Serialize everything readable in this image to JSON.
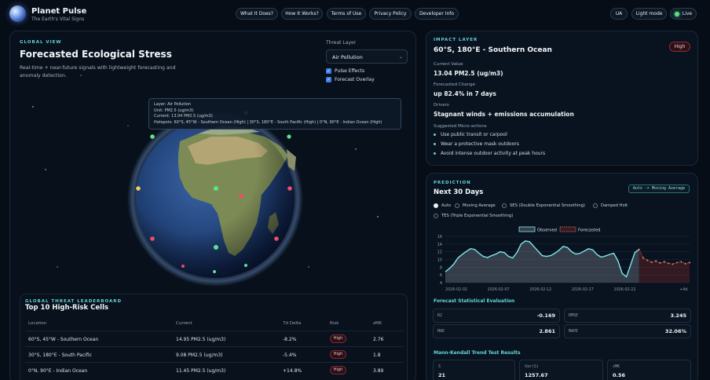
{
  "brand": {
    "title": "Planet Pulse",
    "subtitle": "The Earth's Vital Signs"
  },
  "nav": {
    "links": [
      "What It Does?",
      "How It Works?",
      "Terms of Use",
      "Privacy Policy",
      "Developer Info"
    ],
    "lang": "UA",
    "theme": "Light mode",
    "status": "Live"
  },
  "global_view": {
    "section": "GLOBAL VIEW",
    "title": "Forecasted Ecological Stress",
    "description": "Real-time + near-future signals with lightweight forecasting and anomaly detection.",
    "threat_layer_label": "Threat Layer",
    "threat_layer_value": "Air Pollution",
    "pulse_effects": "Pulse Effects",
    "forecast_overlay": "Forecast Overlay",
    "tooltip": {
      "layer": "Layer: Air Pollution",
      "unit": "Unit: PM2.5 (ug/m3)",
      "current": "Current: 13.04 PM2.5 (ug/m3)",
      "hotspots": "Hotspots: 60°S, 45°W - Southern Ocean (High) | 30°S, 180°E - South Pacific (High) | 0°N, 90°E - Indian Ocean (High)"
    }
  },
  "leaderboard": {
    "section": "GLOBAL THREAT LEADERBOARD",
    "title": "Top 10 High-Risk Cells",
    "columns": [
      "Location",
      "Current",
      "7d Delta",
      "Risk",
      "zMK"
    ],
    "rows": [
      {
        "location": "60°S, 45°W - Southern Ocean",
        "current": "14.95 PM2.5 (ug/m3)",
        "delta": "-8.2%",
        "risk": "High",
        "zmk": "2.76"
      },
      {
        "location": "30°S, 180°E - South Pacific",
        "current": "9.08 PM2.5 (ug/m3)",
        "delta": "-5.4%",
        "risk": "High",
        "zmk": "1.8"
      },
      {
        "location": "0°N, 90°E - Indian Ocean",
        "current": "11.45 PM2.5 (ug/m3)",
        "delta": "+14.8%",
        "risk": "High",
        "zmk": "3.89"
      }
    ]
  },
  "impact": {
    "section": "IMPACT LAYER",
    "title": "60°S, 180°E - Southern Ocean",
    "badge": "High",
    "current_label": "Current Value",
    "current_value": "13.04 PM2.5 (ug/m3)",
    "forecast_label": "Forecasted Change",
    "forecast_value": "up 82.4% in 7 days",
    "drivers_label": "Drivers",
    "drivers_value": "Stagnant winds + emissions accumulation",
    "micro_label": "Suggested Micro-actions",
    "micro_actions": [
      "Use public transit or carpool",
      "Wear a protective mask outdoors",
      "Avoid intense outdoor activity at peak hours"
    ]
  },
  "prediction": {
    "section": "PREDICTION",
    "title": "Next 30 Days",
    "mode_pill": "Auto -> Moving Average",
    "methods": [
      "Auto",
      "Moving Average",
      "SES (Double Exponential Smoothing)",
      "Damped Holt",
      "TES (Triple Exponential Smoothing)"
    ],
    "eval_title": "Forecast Statistical Evaluation",
    "stats": [
      {
        "k": "R2",
        "v": "-0.169"
      },
      {
        "k": "RMSE",
        "v": "3.245"
      },
      {
        "k": "MAE",
        "v": "2.861"
      },
      {
        "k": "MAPE",
        "v": "32.06%"
      }
    ],
    "mk_title": "Mann-Kendall Trend Test Results",
    "mk": [
      {
        "k": "S",
        "v": "21"
      },
      {
        "k": "Var(S)",
        "v": "1257.67"
      },
      {
        "k": "zMK",
        "v": "0.56"
      }
    ]
  },
  "chart_data": {
    "type": "line",
    "legend": [
      "Observed",
      "Forecasted"
    ],
    "x_ticks": [
      "2026-02-02",
      "2026-02-07",
      "2026-02-12",
      "2026-02-17",
      "2026-02-22",
      "+4d"
    ],
    "y_ticks": [
      4,
      6,
      8,
      10,
      12,
      14,
      16
    ],
    "ylim": [
      4,
      16
    ],
    "observed": {
      "t": [
        0,
        0.5,
        1,
        1.5,
        2,
        2.5,
        3,
        3.5,
        4,
        4.5,
        5,
        5.5,
        6,
        6.5,
        7,
        7.5,
        8,
        8.5,
        9,
        9.5,
        10,
        10.5,
        11,
        11.5,
        12,
        12.5,
        13,
        13.5,
        14,
        14.5,
        15,
        15.5,
        16,
        16.5,
        17,
        17.5,
        18,
        18.5,
        19,
        19.5,
        20,
        20.5,
        21,
        21.5,
        22,
        22.5,
        23
      ],
      "values": [
        6.8,
        7.7,
        8.8,
        10.4,
        11.3,
        12.1,
        12.8,
        12.6,
        11.6,
        10.8,
        10.5,
        11.0,
        11.4,
        12.0,
        11.8,
        10.8,
        10.4,
        11.8,
        14.0,
        14.8,
        14.6,
        13.4,
        12.2,
        11.0,
        10.8,
        11.0,
        11.6,
        12.4,
        13.4,
        13.1,
        12.0,
        11.4,
        11.6,
        12.2,
        12.8,
        12.5,
        11.3,
        10.6,
        10.9,
        11.3,
        11.6,
        9.6,
        6.4,
        5.5,
        8.6,
        11.8,
        12.6
      ]
    },
    "forecasted": {
      "t": [
        23,
        23.5,
        24,
        24.5,
        25,
        25.5,
        26,
        26.5,
        27,
        27.5,
        28,
        28.5,
        29
      ],
      "values": [
        12.6,
        10.4,
        9.8,
        9.3,
        9.6,
        9.1,
        9.4,
        9.0,
        8.8,
        9.2,
        9.4,
        8.9,
        9.2
      ]
    }
  }
}
